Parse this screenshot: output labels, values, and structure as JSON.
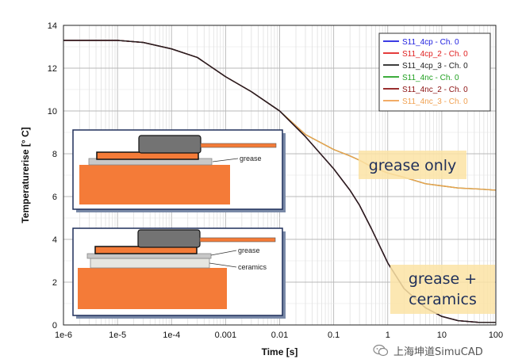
{
  "chart_data": {
    "type": "line",
    "title": "",
    "xlabel": "Time [s]",
    "ylabel": "Temperaturerise [° C]",
    "xscale": "log",
    "xlim": [
      1e-06,
      100
    ],
    "ylim": [
      0,
      14
    ],
    "x_ticks": [
      1e-06,
      1e-05,
      0.0001,
      0.001,
      0.01,
      0.1,
      1,
      10,
      100
    ],
    "x_tick_labels": [
      "1e-6",
      "1e-5",
      "1e-4",
      "0.001",
      "0.01",
      "0.1",
      "1",
      "10",
      "100"
    ],
    "y_ticks": [
      0,
      2,
      4,
      6,
      8,
      10,
      12,
      14
    ],
    "y_tick_labels": [
      "0",
      "2",
      "4",
      "6",
      "8",
      "10",
      "12",
      "14"
    ],
    "grid": true,
    "legend_position": "top-right",
    "x": [
      1e-06,
      1e-05,
      3e-05,
      0.0001,
      0.0003,
      0.001,
      0.003,
      0.01,
      0.03,
      0.1,
      0.2,
      0.3,
      0.5,
      1,
      2,
      5,
      10,
      20,
      50,
      100
    ],
    "series": [
      {
        "name": "S11_4cp - Ch. 0",
        "color": "#2020e0",
        "values": [
          13.3,
          13.3,
          13.2,
          12.9,
          12.5,
          11.6,
          10.9,
          10.0,
          8.8,
          7.3,
          6.3,
          5.6,
          4.5,
          2.9,
          1.7,
          0.8,
          0.4,
          0.2,
          0.12,
          0.12
        ]
      },
      {
        "name": "S11_4cp_2 - Ch. 0",
        "color": "#e02020",
        "values": [
          13.3,
          13.3,
          13.2,
          12.9,
          12.5,
          11.6,
          10.9,
          10.0,
          8.8,
          7.3,
          6.3,
          5.6,
          4.5,
          2.9,
          1.7,
          0.8,
          0.4,
          0.2,
          0.12,
          0.12
        ]
      },
      {
        "name": "S11_4cp_3 - Ch. 0",
        "color": "#222222",
        "values": [
          13.3,
          13.3,
          13.2,
          12.9,
          12.5,
          11.6,
          10.9,
          10.0,
          8.8,
          7.3,
          6.3,
          5.6,
          4.5,
          2.9,
          1.7,
          0.8,
          0.4,
          0.2,
          0.12,
          0.12
        ]
      },
      {
        "name": "S11_4nc - Ch. 0",
        "color": "#20a020",
        "values": [
          13.3,
          13.3,
          13.2,
          12.9,
          12.5,
          11.6,
          10.9,
          10.0,
          8.9,
          8.2,
          7.9,
          7.7,
          7.4,
          7.1,
          6.9,
          6.6,
          6.5,
          6.4,
          6.35,
          6.3
        ]
      },
      {
        "name": "S11_4nc_2 - Ch. 0",
        "color": "#8b1010",
        "values": [
          13.3,
          13.3,
          13.2,
          12.9,
          12.5,
          11.6,
          10.9,
          10.0,
          8.8,
          7.3,
          6.3,
          5.6,
          4.5,
          2.9,
          1.7,
          0.8,
          0.4,
          0.2,
          0.12,
          0.12
        ]
      },
      {
        "name": "S11_4nc_3 - Ch. 0",
        "color": "#f0a050",
        "values": [
          13.3,
          13.3,
          13.2,
          12.9,
          12.5,
          11.6,
          10.9,
          10.0,
          8.9,
          8.2,
          7.9,
          7.7,
          7.4,
          7.1,
          6.9,
          6.6,
          6.5,
          6.4,
          6.35,
          6.3
        ]
      }
    ],
    "annotations": [
      {
        "id": "grease-only",
        "lines": [
          "grease only"
        ]
      },
      {
        "id": "grease-ceramics",
        "lines": [
          "grease +",
          "ceramics"
        ]
      }
    ],
    "insets": [
      {
        "id": "inset-grease",
        "labels": [
          "grease"
        ]
      },
      {
        "id": "inset-ceramics",
        "labels": [
          "grease",
          "ceramics"
        ]
      }
    ]
  },
  "watermark": {
    "text": "上海坤道SimuCAD"
  }
}
